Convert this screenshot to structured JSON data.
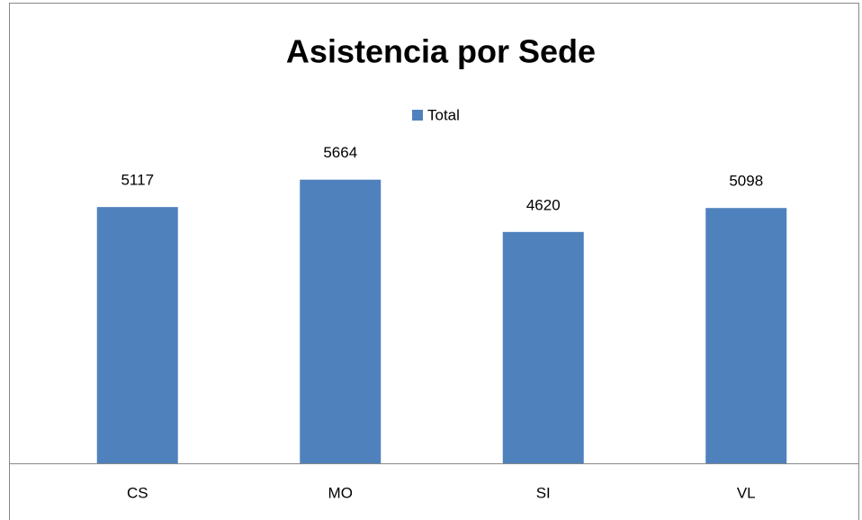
{
  "chart_data": {
    "type": "bar",
    "title": "Asistencia por Sede",
    "legend": "top",
    "series": [
      {
        "name": "Total",
        "color": "#4f81bd",
        "values": [
          5117,
          5664,
          4620,
          5098
        ]
      }
    ],
    "categories": [
      "CS",
      "MO",
      "SI",
      "VL"
    ],
    "ylim": [
      0,
      6000
    ]
  }
}
